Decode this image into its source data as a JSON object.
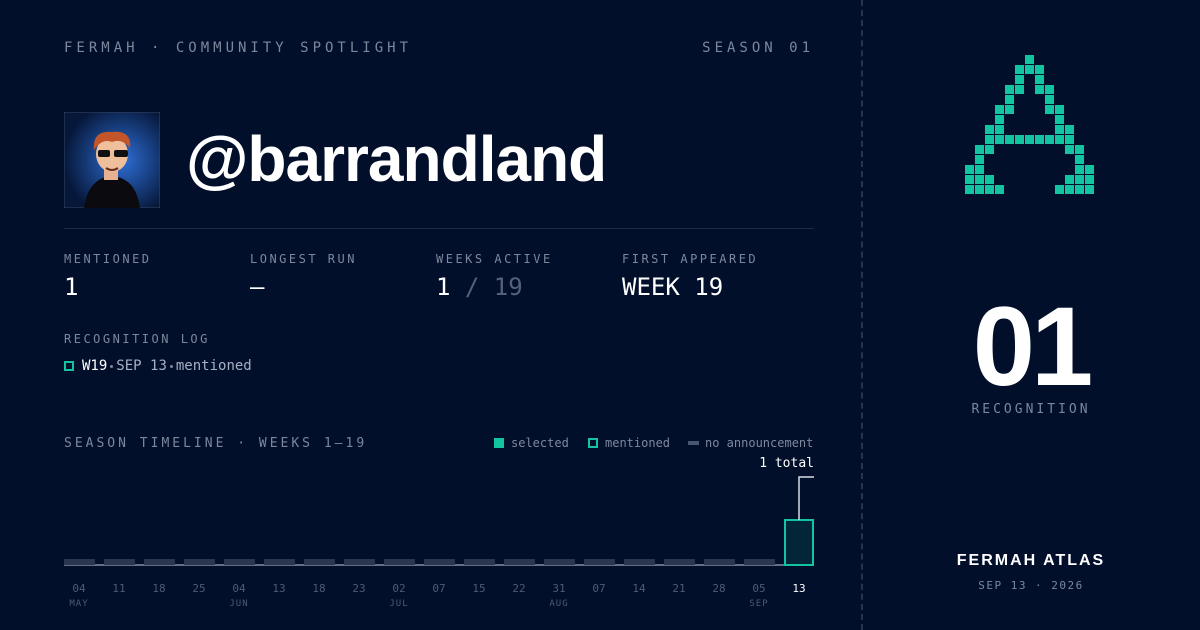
{
  "header": {
    "brand": "FERMAH · COMMUNITY SPOTLIGHT",
    "season": "SEASON 01"
  },
  "profile": {
    "handle": "@barrandland"
  },
  "stats": [
    {
      "label": "MENTIONED",
      "value": "1"
    },
    {
      "label": "LONGEST RUN",
      "value": "—"
    },
    {
      "label": "WEEKS ACTIVE",
      "value": "1",
      "of": "/ 19"
    },
    {
      "label": "FIRST APPEARED",
      "value": "WEEK 19"
    }
  ],
  "log": {
    "title": "RECOGNITION LOG",
    "entries": [
      {
        "week": "W19",
        "date": "SEP 13",
        "status": "mentioned"
      }
    ]
  },
  "timeline": {
    "title": "SEASON TIMELINE · WEEKS 1–19",
    "legend": [
      "selected",
      "mentioned",
      "no announcement"
    ],
    "total_label": "1 total",
    "days": [
      "04",
      "11",
      "18",
      "25",
      "04",
      "13",
      "18",
      "23",
      "02",
      "07",
      "15",
      "22",
      "31",
      "07",
      "14",
      "21",
      "28",
      "05",
      "13"
    ],
    "months": [
      "MAY",
      null,
      null,
      null,
      "JUN",
      null,
      null,
      null,
      "JUL",
      null,
      null,
      null,
      "AUG",
      null,
      null,
      null,
      null,
      "SEP",
      null
    ],
    "mentioned": [
      0,
      0,
      0,
      0,
      0,
      0,
      0,
      0,
      0,
      0,
      0,
      0,
      0,
      0,
      0,
      0,
      0,
      0,
      1
    ]
  },
  "side": {
    "number": "01",
    "number_label": "RECOGNITION",
    "brand": "FERMAH ATLAS",
    "date": "SEP 13 · 2026"
  }
}
